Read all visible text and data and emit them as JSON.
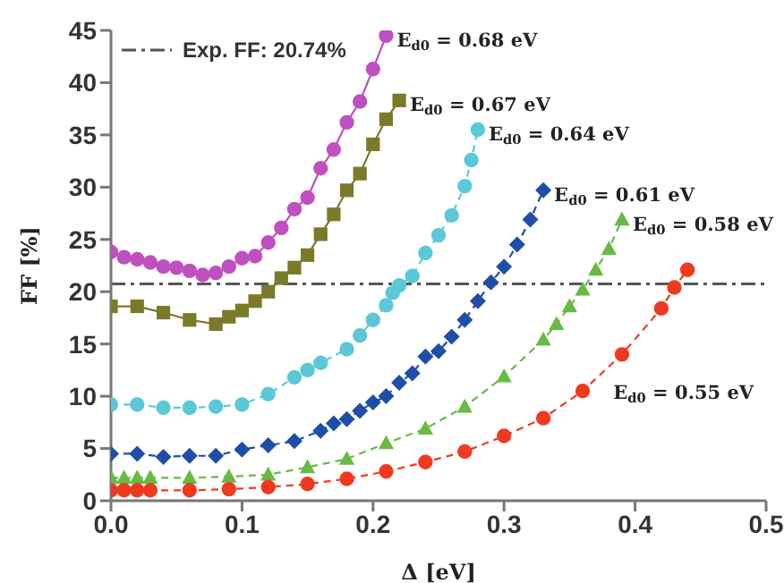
{
  "chart_data": {
    "type": "line",
    "xlabel": "Δ [eV]",
    "ylabel": "FF [%]",
    "xlim": [
      0,
      0.5
    ],
    "xticks": [
      {
        "value": 0,
        "label": "0.0"
      },
      0.1,
      0.2,
      0.3,
      0.4,
      0.5
    ],
    "ylim": [
      0,
      45
    ],
    "yticks": [
      0,
      5,
      10,
      15,
      20,
      25,
      30,
      35,
      40,
      45
    ],
    "grid": false,
    "legend": "top left",
    "ref_lines": [
      {
        "axis": "y",
        "value": 20.74,
        "label": "Exp. FF: 20.74%",
        "color": "#555555",
        "line_style": "dashdot"
      }
    ],
    "series": [
      {
        "name": "E$_{d0}$ = 0.68 eV",
        "color": "#c050c0",
        "marker": "circle",
        "line_style": "solid",
        "x": [
          0,
          0.01,
          0.02,
          0.03,
          0.04,
          0.05,
          0.06,
          0.07,
          0.08,
          0.09,
          0.1,
          0.11,
          0.12,
          0.13,
          0.14,
          0.15,
          0.16,
          0.17,
          0.18,
          0.19,
          0.2,
          0.21
        ],
        "values": [
          23.8,
          23.3,
          23.1,
          22.8,
          22.4,
          22.3,
          22.0,
          21.6,
          21.8,
          22.4,
          23.2,
          23.4,
          24.7,
          26.1,
          27.9,
          29.0,
          31.8,
          33.6,
          36.2,
          38.2,
          41.3,
          44.5
        ]
      },
      {
        "name": "E$_{d0}$ = 0.67 eV",
        "color": "#7a7a2a",
        "marker": "square",
        "line_style": "solid",
        "x": [
          0,
          0.02,
          0.04,
          0.06,
          0.08,
          0.09,
          0.1,
          0.11,
          0.12,
          0.13,
          0.14,
          0.15,
          0.16,
          0.17,
          0.18,
          0.19,
          0.2,
          0.21,
          0.22
        ],
        "values": [
          18.6,
          18.6,
          18.0,
          17.3,
          16.9,
          17.6,
          18.2,
          19.1,
          20.0,
          21.3,
          22.3,
          23.5,
          25.5,
          27.4,
          29.7,
          31.3,
          34.1,
          36.5,
          38.3
        ]
      },
      {
        "name": "E$_{d0}$ = 0.64 eV",
        "color": "#5bc8d8",
        "marker": "circle",
        "line_style": "dashed",
        "x": [
          0,
          0.02,
          0.04,
          0.06,
          0.08,
          0.1,
          0.12,
          0.14,
          0.15,
          0.16,
          0.18,
          0.19,
          0.2,
          0.21,
          0.215,
          0.22,
          0.23,
          0.24,
          0.25,
          0.26,
          0.27,
          0.275,
          0.28
        ],
        "values": [
          9.2,
          9.2,
          8.9,
          8.9,
          9.0,
          9.2,
          10.2,
          11.8,
          12.5,
          13.2,
          14.5,
          15.8,
          17.3,
          18.7,
          19.9,
          20.6,
          21.5,
          23.7,
          25.4,
          27.3,
          30.1,
          32.6,
          35.5
        ]
      },
      {
        "name": "E$_{d0}$ = 0.61 eV",
        "color": "#1f4ea8",
        "marker": "diamond",
        "line_style": "dashed",
        "x": [
          0,
          0.02,
          0.04,
          0.06,
          0.08,
          0.1,
          0.12,
          0.14,
          0.16,
          0.17,
          0.18,
          0.19,
          0.2,
          0.21,
          0.22,
          0.23,
          0.24,
          0.25,
          0.26,
          0.27,
          0.28,
          0.29,
          0.3,
          0.31,
          0.32,
          0.33
        ],
        "values": [
          4.5,
          4.5,
          4.2,
          4.3,
          4.3,
          4.9,
          5.3,
          5.7,
          6.7,
          7.4,
          7.8,
          8.6,
          9.4,
          10.0,
          11.3,
          12.2,
          13.8,
          14.3,
          15.7,
          17.3,
          19.1,
          20.9,
          22.4,
          24.5,
          26.9,
          29.7
        ]
      },
      {
        "name": "E$_{d0}$ = 0.58 eV",
        "color": "#66bb44",
        "marker": "triangle",
        "line_style": "dashed",
        "x": [
          0,
          0.01,
          0.02,
          0.03,
          0.06,
          0.09,
          0.12,
          0.15,
          0.18,
          0.21,
          0.24,
          0.27,
          0.3,
          0.33,
          0.34,
          0.35,
          0.36,
          0.37,
          0.38,
          0.39
        ],
        "values": [
          2.2,
          2.2,
          2.2,
          2.2,
          2.2,
          2.3,
          2.5,
          3.2,
          4.0,
          5.5,
          6.9,
          9.0,
          11.9,
          15.4,
          16.9,
          18.6,
          20.2,
          22.1,
          24.1,
          26.9
        ]
      },
      {
        "name": "E$_{d0}$ = 0.55 eV",
        "color": "#f03a20",
        "marker": "circle",
        "line_style": "dashed",
        "x": [
          0,
          0.01,
          0.02,
          0.03,
          0.06,
          0.09,
          0.12,
          0.15,
          0.18,
          0.21,
          0.24,
          0.27,
          0.3,
          0.33,
          0.36,
          0.39,
          0.42,
          0.43,
          0.44
        ],
        "values": [
          1.0,
          1.0,
          1.0,
          1.0,
          1.0,
          1.1,
          1.3,
          1.6,
          2.1,
          2.8,
          3.7,
          4.7,
          6.2,
          7.9,
          10.5,
          14.0,
          18.4,
          20.4,
          22.1
        ]
      }
    ]
  }
}
